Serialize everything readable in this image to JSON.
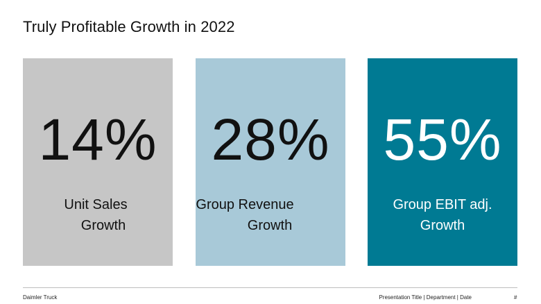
{
  "slide": {
    "title": "Truly Profitable Growth in 2022"
  },
  "cards": [
    {
      "value": "14%",
      "label_line1": "Unit Sales",
      "label_line2": "Growth",
      "bg": "#c6c6c6",
      "fg": "#111111"
    },
    {
      "value": "28%",
      "label_line1": "Group Revenue",
      "label_line2": "Growth",
      "bg": "#a8c9d8",
      "fg": "#111111"
    },
    {
      "value": "55%",
      "label_line1": "Group EBIT adj.",
      "label_line2": "Growth",
      "bg": "#007a93",
      "fg": "#ffffff"
    }
  ],
  "footer": {
    "company": "Daimler Truck",
    "meta": "Presentation Title | Department | Date",
    "page": "#"
  }
}
